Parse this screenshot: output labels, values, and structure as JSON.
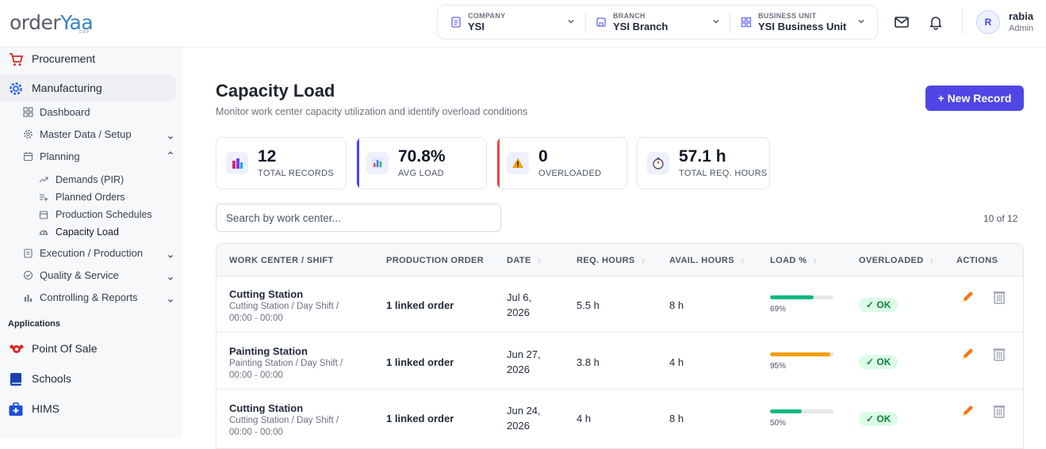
{
  "header": {
    "logo_main": "order",
    "logo_accent": "Yaa",
    "logo_sub": "ERP",
    "context": [
      {
        "label": "COMPANY",
        "value": "YSI",
        "icon": "document-icon"
      },
      {
        "label": "BRANCH",
        "value": "YSI Branch",
        "icon": "building-icon"
      },
      {
        "label": "BUSINESS UNIT",
        "value": "YSI Business Unit",
        "icon": "grid-icon"
      }
    ],
    "user": {
      "initial": "R",
      "name": "rabia",
      "role": "Admin"
    }
  },
  "sidebar": {
    "procurement": "Procurement",
    "manufacturing": "Manufacturing",
    "dashboard": "Dashboard",
    "master_data": "Master Data / Setup",
    "planning": "Planning",
    "planning_items": [
      "Demands (PIR)",
      "Planned Orders",
      "Production Schedules",
      "Capacity Load"
    ],
    "execution": "Execution / Production",
    "quality": "Quality & Service",
    "controlling": "Controlling & Reports",
    "applications_heading": "Applications",
    "apps": [
      "Point Of Sale",
      "Schools",
      "HIMS"
    ]
  },
  "page": {
    "title": "Capacity Load",
    "subtitle": "Monitor work center capacity utilization and identify overload conditions",
    "new_button": "+ New Record"
  },
  "stats": [
    {
      "value": "12",
      "label": "TOTAL RECORDS",
      "icon": "buildings-icon",
      "accent": ""
    },
    {
      "value": "70.8%",
      "label": "AVG LOAD",
      "icon": "bar-chart-icon",
      "accent": "#4f46e5"
    },
    {
      "value": "0",
      "label": "OVERLOADED",
      "icon": "warning-icon",
      "accent": "#ef4444"
    },
    {
      "value": "57.1 h",
      "label": "TOTAL REQ. HOURS",
      "icon": "stopwatch-icon",
      "accent": ""
    }
  ],
  "search": {
    "placeholder": "Search by work center...",
    "value": ""
  },
  "count_text": "10 of 12",
  "table": {
    "headers": [
      "WORK CENTER / SHIFT",
      "PRODUCTION ORDER",
      "DATE",
      "REQ. HOURS",
      "AVAIL. HOURS",
      "LOAD %",
      "OVERLOADED",
      "ACTIONS"
    ],
    "rows": [
      {
        "center": "Cutting Station",
        "shift": "Cutting Station / Day Shift / 00:00 - 00:00",
        "order": "1 linked order",
        "date": "Jul 6, 2026",
        "req": "5.5 h",
        "avail": "8 h",
        "load_text": "69%",
        "load": 0.69,
        "bar_color": "#10b981",
        "overloaded": "✓ OK"
      },
      {
        "center": "Painting Station",
        "shift": "Painting Station / Day Shift / 00:00 - 00:00",
        "order": "1 linked order",
        "date": "Jun 27, 2026",
        "req": "3.8 h",
        "avail": "4 h",
        "load_text": "95%",
        "load": 0.95,
        "bar_color": "#f59e0b",
        "overloaded": "✓ OK"
      },
      {
        "center": "Cutting Station",
        "shift": "Cutting Station / Day Shift / 00:00 - 00:00",
        "order": "1 linked order",
        "date": "Jun 24, 2026",
        "req": "4 h",
        "avail": "8 h",
        "load_text": "50%",
        "load": 0.5,
        "bar_color": "#10b981",
        "overloaded": "✓ OK"
      }
    ]
  }
}
